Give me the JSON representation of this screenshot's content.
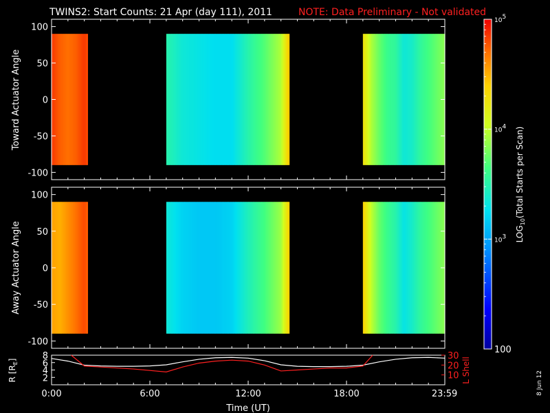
{
  "header": {
    "title": "TWINS2: Start Counts: 21 Apr (day 111), 2011",
    "note": "NOTE: Data Preliminary - Not validated"
  },
  "footer": {
    "date_stamp": "8 Jun 12"
  },
  "colors": {
    "background": "#000000",
    "axes": "#ffffff",
    "note_red": "#ff2020",
    "lshell": "#ff2020",
    "radius": "#ffffff"
  },
  "chart_data": [
    {
      "type": "heatmap",
      "panel": "top",
      "ylabel": "Toward Actuator Angle",
      "xlim": [
        0,
        24
      ],
      "ylim": [
        -110,
        110
      ],
      "yticks": [
        -100,
        -50,
        0,
        50,
        100
      ],
      "data_y_range": [
        -90,
        90
      ],
      "x_hours": [
        0.0,
        0.5,
        1.0,
        1.5,
        2.0,
        7.0,
        8.0,
        9.0,
        10.0,
        11.0,
        12.0,
        13.0,
        14.0,
        14.5,
        19.0,
        19.5,
        20.0,
        20.5,
        21.0,
        21.5,
        22.0,
        22.5,
        23.0,
        23.5,
        24.0
      ],
      "log10_counts": [
        4.85,
        4.75,
        4.7,
        4.75,
        4.85,
        3.5,
        3.35,
        3.3,
        3.25,
        3.25,
        3.5,
        3.7,
        3.95,
        4.45,
        4.3,
        3.95,
        3.75,
        3.6,
        3.55,
        3.35,
        3.4,
        3.55,
        3.65,
        3.75,
        3.85
      ],
      "gaps_hours": [
        [
          2.2,
          7.0
        ],
        [
          14.5,
          19.0
        ]
      ],
      "x_tick_labels": [
        "0:00",
        "6:00",
        "12:00",
        "18:00",
        "23:59"
      ]
    },
    {
      "type": "heatmap",
      "panel": "middle",
      "ylabel": "Away Actuator Angle",
      "xlim": [
        0,
        24
      ],
      "ylim": [
        -110,
        110
      ],
      "yticks": [
        -100,
        -50,
        0,
        50,
        100
      ],
      "data_y_range": [
        -90,
        90
      ],
      "x_hours": [
        0.0,
        0.5,
        1.0,
        1.5,
        2.0,
        7.0,
        8.0,
        9.0,
        10.0,
        11.0,
        12.0,
        13.0,
        14.0,
        14.5,
        19.0,
        19.5,
        20.0,
        20.5,
        21.0,
        21.5,
        22.0,
        22.5,
        23.0,
        23.5,
        24.0
      ],
      "log10_counts": [
        4.55,
        4.5,
        4.6,
        4.7,
        4.8,
        3.35,
        3.2,
        3.15,
        3.15,
        3.2,
        3.45,
        3.65,
        3.9,
        4.4,
        4.4,
        4.0,
        3.75,
        3.6,
        3.5,
        3.3,
        3.4,
        3.55,
        3.65,
        3.75,
        3.85
      ],
      "gaps_hours": [
        [
          2.2,
          7.0
        ],
        [
          14.5,
          19.0
        ]
      ],
      "x_tick_labels": [
        "0:00",
        "6:00",
        "12:00",
        "18:00",
        "23:59"
      ]
    },
    {
      "type": "line",
      "panel": "ephemeris",
      "xlabel": "Time (UT)",
      "ylabel_left": "R [R",
      "ylabel_left_sub": "E",
      "ylabel_left_close": "]",
      "ylabel_right": "L Shell",
      "x_tick_labels": [
        "0:00",
        "6:00",
        "12:00",
        "18:00",
        "23:59"
      ],
      "x_tick_hours": [
        0,
        6,
        12,
        18,
        23.983
      ],
      "left_ylim": [
        0,
        8
      ],
      "left_ticks": [
        2,
        4,
        6,
        8
      ],
      "right_ylim": [
        0,
        30
      ],
      "right_ticks": [
        10,
        20,
        30
      ],
      "series": [
        {
          "name": "R [RE]",
          "axis": "left",
          "x": [
            0,
            1,
            2,
            3,
            4,
            5,
            6,
            7,
            8,
            9,
            10,
            11,
            12,
            13,
            14,
            15,
            16,
            17,
            18,
            19,
            20,
            21,
            22,
            23,
            24
          ],
          "values": [
            7.1,
            6.4,
            5.3,
            5.1,
            5.0,
            5.0,
            5.1,
            5.4,
            6.2,
            6.9,
            7.3,
            7.4,
            7.2,
            6.5,
            5.4,
            5.0,
            4.9,
            4.9,
            5.0,
            5.3,
            6.2,
            6.9,
            7.3,
            7.4,
            7.2
          ]
        },
        {
          "name": "L Shell",
          "axis": "right",
          "x": [
            1.2,
            2.0,
            3.0,
            5.0,
            7.0,
            8.0,
            9.0,
            10.0,
            11.0,
            12.0,
            13.0,
            14.0,
            15.0,
            16.0,
            17.0,
            18.0,
            19.0,
            19.6
          ],
          "values": [
            31,
            19,
            18,
            16,
            13,
            18,
            22,
            24,
            25,
            24,
            20,
            14,
            15,
            16,
            17,
            17,
            19,
            31
          ]
        }
      ]
    },
    {
      "type": "heatmap",
      "panel": "colorbar",
      "scale": "log",
      "clim": [
        100,
        100000
      ],
      "tick_labels": [
        {
          "base": "10",
          "exp": "5",
          "log": 5
        },
        {
          "base": "10",
          "exp": "4",
          "log": 4
        },
        {
          "base": "10",
          "exp": "3",
          "log": 3
        },
        {
          "base": "100",
          "exp": "",
          "log": 2
        }
      ],
      "label_pre": "LOG",
      "label_sub": "10",
      "label_post": "(Total Starts per Scan)"
    }
  ]
}
